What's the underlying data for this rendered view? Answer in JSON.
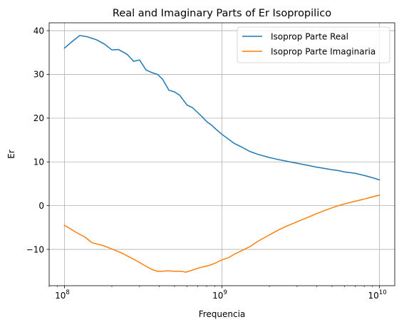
{
  "chart_data": {
    "type": "line",
    "title": "Real and Imaginary Parts of Er Isopropilico",
    "xlabel": "Frequencia",
    "ylabel": "Er",
    "xscale": "log",
    "xlim": [
      80000000,
      12500000000
    ],
    "ylim": [
      -18.3,
      41.8
    ],
    "x_ticks": [
      {
        "value": 100000000,
        "base": "10",
        "exp": "8"
      },
      {
        "value": 1000000000,
        "base": "10",
        "exp": "9"
      },
      {
        "value": 10000000000,
        "base": "10",
        "exp": "10"
      }
    ],
    "y_ticks": [
      -10,
      0,
      10,
      20,
      30,
      40
    ],
    "grid": true,
    "legend_position": "top-right",
    "series": [
      {
        "name": "Isoprop Parte Real",
        "color": "#1f77b4",
        "x": [
          100000000.0,
          110000000.0,
          125000000.0,
          140000000.0,
          160000000.0,
          180000000.0,
          200000000.0,
          220000000.0,
          250000000.0,
          275000000.0,
          300000000.0,
          330000000.0,
          360000000.0,
          390000000.0,
          420000000.0,
          460000000.0,
          500000000.0,
          540000000.0,
          600000000.0,
          650000000.0,
          700000000.0,
          750000000.0,
          800000000.0,
          860000000.0,
          920000000.0,
          1000000000.0,
          1100000000.0,
          1200000000.0,
          1350000000.0,
          1500000000.0,
          1700000000.0,
          2000000000.0,
          2300000000.0,
          2700000000.0,
          3000000000.0,
          3500000000.0,
          4000000000.0,
          4500000000.0,
          5000000000.0,
          5500000000.0,
          6000000000.0,
          7000000000.0,
          8000000000.0,
          9000000000.0,
          10000000000.0
        ],
        "y": [
          36.0,
          37.3,
          38.9,
          38.6,
          37.9,
          36.9,
          35.6,
          35.7,
          34.6,
          33.0,
          33.3,
          31.0,
          30.4,
          30.0,
          28.9,
          26.4,
          26.0,
          25.2,
          23.0,
          22.4,
          21.3,
          20.3,
          19.2,
          18.4,
          17.4,
          16.3,
          15.2,
          14.2,
          13.3,
          12.4,
          11.7,
          11.0,
          10.5,
          10.0,
          9.7,
          9.2,
          8.8,
          8.5,
          8.2,
          8.0,
          7.7,
          7.4,
          6.9,
          6.4,
          5.9
        ]
      },
      {
        "name": "Isoprop Parte Imaginaria",
        "color": "#ff7f0e",
        "x": [
          100000000.0,
          120000000.0,
          135000000.0,
          150000000.0,
          175000000.0,
          200000000.0,
          230000000.0,
          260000000.0,
          290000000.0,
          320000000.0,
          360000000.0,
          390000000.0,
          420000000.0,
          450000000.0,
          500000000.0,
          550000000.0,
          590000000.0,
          630000000.0,
          680000000.0,
          720000000.0,
          780000000.0,
          840000000.0,
          900000000.0,
          960000000.0,
          1000000000.0,
          1100000000.0,
          1200000000.0,
          1350000000.0,
          1500000000.0,
          1700000000.0,
          2000000000.0,
          2300000000.0,
          2600000000.0,
          3000000000.0,
          3500000000.0,
          4000000000.0,
          4500000000.0,
          5000000000.0,
          5500000000.0,
          6000000000.0,
          7000000000.0,
          8000000000.0,
          9000000000.0,
          10000000000.0
        ],
        "y": [
          -4.5,
          -6.2,
          -7.2,
          -8.5,
          -9.1,
          -9.9,
          -10.8,
          -11.8,
          -12.7,
          -13.6,
          -14.6,
          -15.0,
          -15.0,
          -14.9,
          -15.0,
          -15.0,
          -15.2,
          -14.9,
          -14.5,
          -14.2,
          -13.9,
          -13.6,
          -13.2,
          -12.7,
          -12.4,
          -11.9,
          -11.1,
          -10.2,
          -9.4,
          -8.1,
          -6.7,
          -5.5,
          -4.6,
          -3.7,
          -2.7,
          -1.8,
          -1.1,
          -0.5,
          0.0,
          0.4,
          1.0,
          1.5,
          2.0,
          2.4
        ]
      }
    ]
  }
}
